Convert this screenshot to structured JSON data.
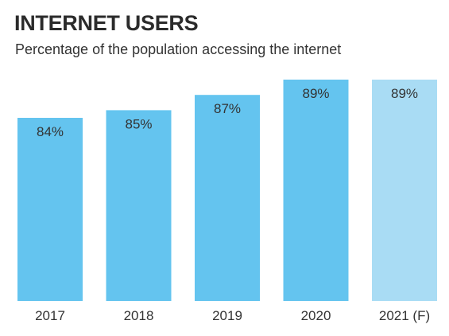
{
  "colors": {
    "bar_actual": "#64C4EF",
    "bar_forecast": "#A9DCF4",
    "text": "#2b2b2b"
  },
  "chart_data": {
    "type": "bar",
    "title": "INTERNET USERS",
    "subtitle": "Percentage of the population accessing the internet",
    "xlabel": "",
    "ylabel": "",
    "categories": [
      "2017",
      "2018",
      "2019",
      "2020",
      "2021 (F)"
    ],
    "values": [
      84,
      85,
      87,
      89,
      89
    ],
    "value_labels": [
      "84%",
      "85%",
      "87%",
      "89%",
      "89%"
    ],
    "forecast": [
      false,
      false,
      false,
      false,
      true
    ],
    "ylim": [
      0,
      89
    ],
    "grid": false,
    "legend": "none"
  }
}
